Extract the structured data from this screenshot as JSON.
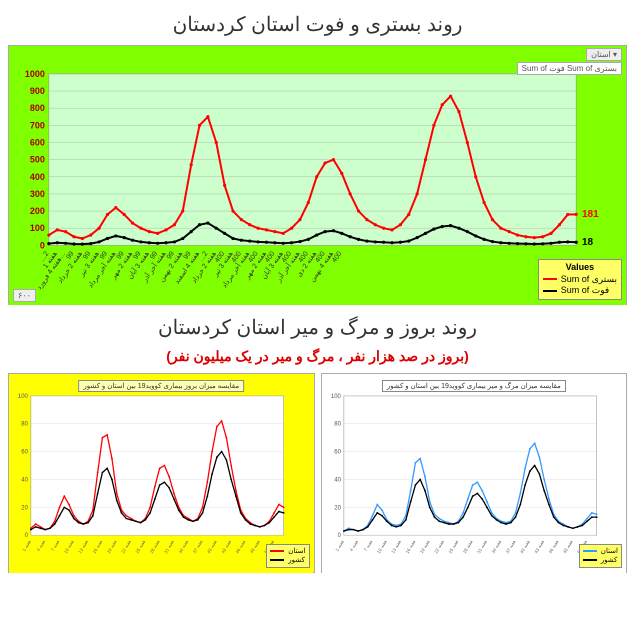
{
  "top": {
    "title": "روند بستری و فوت استان کردستان",
    "background": "#7fff00",
    "plot_bg": "#ccffcc",
    "ylim": [
      0,
      1000
    ],
    "ytick_step": 100,
    "yticks": [
      0,
      100,
      200,
      300,
      400,
      500,
      600,
      700,
      800,
      900,
      1000
    ],
    "xlabels": [
      "…2",
      "هفته 1",
      "هفته 4 فرورد…",
      "99",
      "هفته 2 خرداد",
      "99",
      "هفته 3 تیر",
      "99",
      "هفته آخر مرداد",
      "99",
      "هفته 2 مهر",
      "99",
      "هفته 3 آبان",
      "99",
      "هفته آخر آذر",
      "99",
      "هفته 2 بهمن",
      "99",
      "هفته 4 اسفند",
      "…2",
      "هفته 2 خرداد",
      "400",
      "هفته 3 تیر",
      "400",
      "هفته آخر مرداد",
      "400",
      "هفته 2 مهر",
      "400",
      "هفته 3 آبان",
      "400",
      "هفته آخر آذر",
      "400",
      "هفته 2 دی",
      "400",
      "هفته 4 بهمن",
      "400"
    ],
    "series": {
      "bastari": {
        "label": "Sum of بستری",
        "color": "#ff0000",
        "marker": "circle",
        "line_width": 2,
        "end_value": 181,
        "values": [
          60,
          90,
          80,
          50,
          40,
          60,
          100,
          180,
          220,
          180,
          130,
          100,
          80,
          70,
          90,
          120,
          200,
          470,
          700,
          750,
          600,
          350,
          200,
          150,
          120,
          100,
          90,
          80,
          70,
          100,
          150,
          250,
          400,
          480,
          500,
          420,
          300,
          200,
          150,
          120,
          100,
          90,
          120,
          180,
          300,
          500,
          700,
          820,
          870,
          780,
          600,
          400,
          250,
          150,
          100,
          80,
          60,
          50,
          45,
          50,
          70,
          120,
          180,
          181
        ]
      },
      "fot": {
        "label": "Sum of فوت",
        "color": "#000000",
        "marker": "circle",
        "line_width": 2,
        "end_value": 18,
        "values": [
          10,
          15,
          12,
          8,
          7,
          10,
          20,
          40,
          55,
          45,
          30,
          20,
          15,
          12,
          15,
          20,
          40,
          80,
          120,
          130,
          100,
          70,
          40,
          30,
          25,
          20,
          18,
          15,
          12,
          15,
          22,
          35,
          60,
          80,
          85,
          70,
          50,
          35,
          25,
          20,
          18,
          15,
          18,
          25,
          45,
          70,
          95,
          110,
          115,
          100,
          80,
          55,
          35,
          22,
          15,
          12,
          10,
          9,
          8,
          9,
          12,
          18,
          20,
          18
        ]
      }
    },
    "legend_header": "Values",
    "filter_left": "استان ▾",
    "filter_right": "Sum of فوت  Sum of بستری",
    "footer_tag": "۶۰۰"
  },
  "bottomTitle": "روند بروز و مرگ و میر استان کردستان",
  "bottomSubtitle": "(بروز در صد هزار نفر ، مرگ و میر در یک میلیون نفر)",
  "left": {
    "background": "#ffff00",
    "plot_bg": "#ffffff",
    "title": "مقایسه میزان بروز بیماری کووید19 بین استان و کشور",
    "ylim": [
      0,
      100
    ],
    "series": {
      "ostan": {
        "label": "استان",
        "color": "#ff0000",
        "values": [
          5,
          8,
          6,
          4,
          5,
          10,
          20,
          28,
          22,
          14,
          10,
          8,
          10,
          18,
          45,
          70,
          72,
          55,
          30,
          18,
          14,
          12,
          10,
          9,
          12,
          20,
          35,
          48,
          50,
          42,
          30,
          20,
          14,
          12,
          10,
          12,
          20,
          38,
          60,
          78,
          82,
          70,
          50,
          32,
          18,
          12,
          9,
          7,
          6,
          7,
          10,
          16,
          22,
          20
        ]
      },
      "keshvar": {
        "label": "کشور",
        "color": "#000000",
        "values": [
          4,
          6,
          5,
          4,
          5,
          8,
          14,
          20,
          18,
          12,
          9,
          8,
          9,
          14,
          30,
          45,
          48,
          40,
          25,
          16,
          12,
          11,
          10,
          9,
          11,
          16,
          26,
          36,
          38,
          34,
          26,
          18,
          13,
          11,
          10,
          11,
          16,
          28,
          44,
          56,
          60,
          54,
          40,
          28,
          16,
          11,
          8,
          7,
          6,
          7,
          9,
          13,
          17,
          16
        ]
      }
    }
  },
  "right": {
    "background": "#ffffff",
    "plot_bg": "#ffffff",
    "title": "مقایسه میزان مرگ و میر بیماری کووید19 بین استان و کشور",
    "ylim": [
      0,
      100
    ],
    "series": {
      "ostan": {
        "label": "استان",
        "color": "#3399ff",
        "values": [
          3,
          5,
          4,
          3,
          4,
          7,
          14,
          22,
          18,
          11,
          8,
          7,
          8,
          14,
          32,
          52,
          55,
          42,
          24,
          15,
          12,
          10,
          9,
          8,
          10,
          16,
          26,
          36,
          38,
          32,
          24,
          16,
          12,
          10,
          9,
          10,
          16,
          30,
          48,
          62,
          66,
          56,
          40,
          26,
          15,
          10,
          8,
          6,
          5,
          6,
          8,
          12,
          16,
          15
        ]
      },
      "keshvar": {
        "label": "کشور",
        "color": "#000000",
        "values": [
          3,
          4,
          4,
          3,
          4,
          6,
          11,
          16,
          14,
          10,
          7,
          6,
          7,
          11,
          24,
          36,
          40,
          32,
          20,
          13,
          10,
          9,
          8,
          8,
          9,
          13,
          20,
          28,
          30,
          26,
          20,
          14,
          11,
          9,
          8,
          9,
          13,
          22,
          36,
          46,
          50,
          44,
          32,
          22,
          13,
          9,
          7,
          6,
          5,
          6,
          7,
          10,
          13,
          13
        ]
      }
    },
    "legend_bg": "#ffff66"
  }
}
